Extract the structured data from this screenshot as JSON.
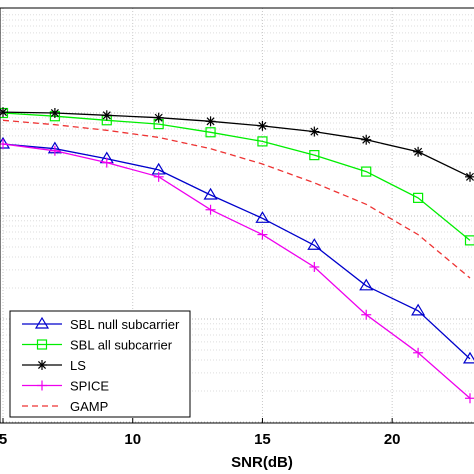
{
  "chart_data": {
    "type": "line",
    "xlabel": "SNR(dB)",
    "ylabel": "",
    "title": "",
    "y_scale": "log",
    "grid": true,
    "legend_position": "bottom-left",
    "x_ticks": [
      "5",
      "10",
      "15",
      "20"
    ],
    "xlim": [
      5,
      23
    ],
    "ylim": [
      3e-05,
      0.13
    ],
    "series": [
      {
        "name": "SBL null subcarrier",
        "color": "#0000cc",
        "marker": "triangle",
        "line_style": "solid",
        "x": [
          5,
          7,
          9,
          11,
          13,
          15,
          17,
          19,
          21,
          23
        ],
        "y": [
          0.05,
          0.045,
          0.036,
          0.028,
          0.016,
          0.0095,
          0.0052,
          0.0021,
          0.0012,
          0.00041
        ]
      },
      {
        "name": "SBL all subcarrier",
        "color": "#00ee00",
        "marker": "square",
        "line_style": "solid",
        "x": [
          5,
          7,
          9,
          11,
          13,
          15,
          17,
          19,
          21,
          23
        ],
        "y": [
          0.1,
          0.093,
          0.085,
          0.078,
          0.065,
          0.053,
          0.039,
          0.027,
          0.015,
          0.0058
        ]
      },
      {
        "name": "LS",
        "color": "#000000",
        "marker": "asterisk",
        "line_style": "solid",
        "x": [
          5,
          7,
          9,
          11,
          13,
          15,
          17,
          19,
          21,
          23
        ],
        "y": [
          0.102,
          0.1,
          0.095,
          0.09,
          0.083,
          0.075,
          0.066,
          0.055,
          0.042,
          0.024
        ]
      },
      {
        "name": "SPICE",
        "color": "#ee00ee",
        "marker": "plus",
        "line_style": "solid",
        "x": [
          5,
          7,
          9,
          11,
          13,
          15,
          17,
          19,
          21,
          23
        ],
        "y": [
          0.05,
          0.043,
          0.033,
          0.024,
          0.0115,
          0.0066,
          0.0032,
          0.0011,
          0.00047,
          0.00017
        ]
      },
      {
        "name": "GAMP",
        "color": "#ee3333",
        "marker": "none",
        "line_style": "dashed",
        "x": [
          5,
          7,
          9,
          11,
          13,
          15,
          17,
          19,
          21,
          23
        ],
        "y": [
          0.085,
          0.077,
          0.068,
          0.058,
          0.045,
          0.032,
          0.021,
          0.013,
          0.0066,
          0.0025
        ]
      }
    ]
  }
}
